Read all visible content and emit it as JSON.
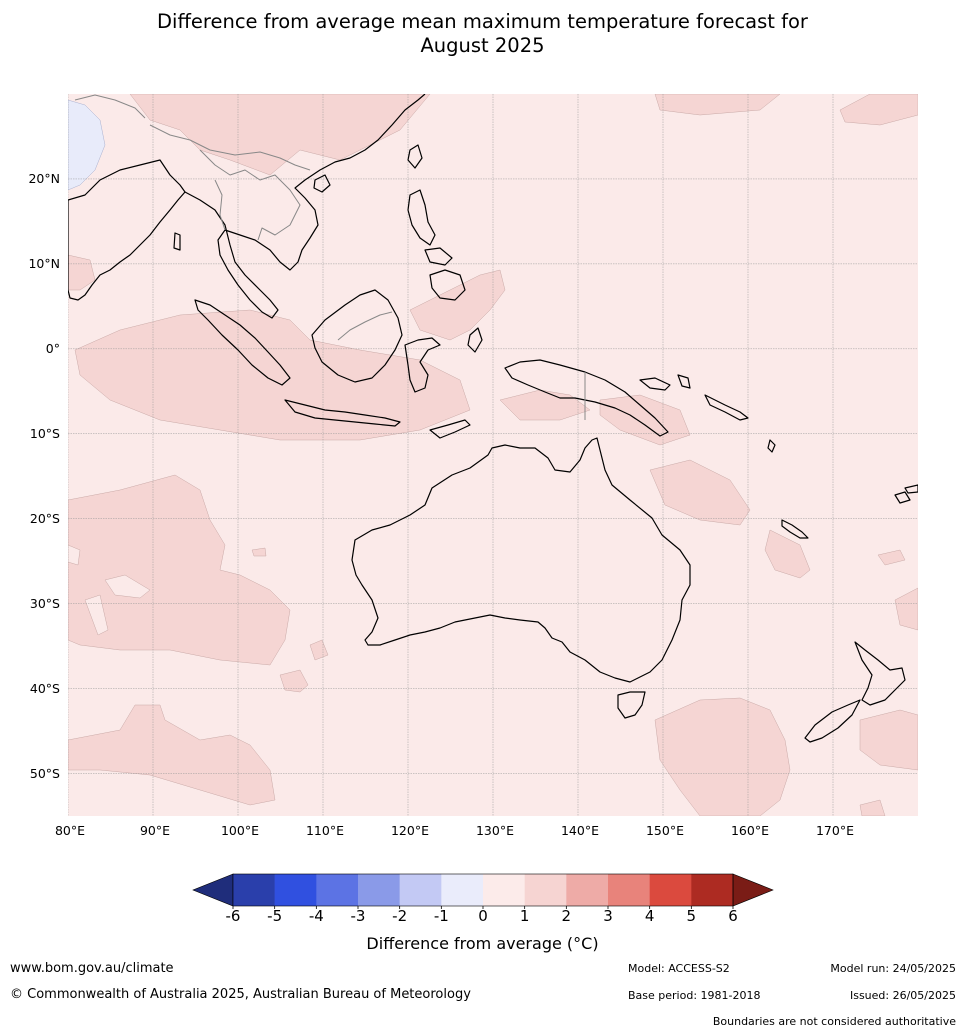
{
  "title": {
    "line1": "Difference from average mean maximum temperature forecast for",
    "line2": "August 2025"
  },
  "map": {
    "extent": {
      "lon_min": 80,
      "lon_max": 180,
      "lat_min": -55,
      "lat_max": 30
    },
    "lat_ticks": [
      {
        "value": 20,
        "label": "20°N"
      },
      {
        "value": 10,
        "label": "10°N"
      },
      {
        "value": 0,
        "label": "0°"
      },
      {
        "value": -10,
        "label": "10°S"
      },
      {
        "value": -20,
        "label": "20°S"
      },
      {
        "value": -30,
        "label": "30°S"
      },
      {
        "value": -40,
        "label": "40°S"
      },
      {
        "value": -50,
        "label": "50°S"
      }
    ],
    "lon_ticks": [
      {
        "value": 80,
        "label": "80°E"
      },
      {
        "value": 90,
        "label": "90°E"
      },
      {
        "value": 100,
        "label": "100°E"
      },
      {
        "value": 110,
        "label": "110°E"
      },
      {
        "value": 120,
        "label": "120°E"
      },
      {
        "value": 130,
        "label": "130°E"
      },
      {
        "value": 140,
        "label": "140°E"
      },
      {
        "value": 150,
        "label": "150°E"
      },
      {
        "value": 160,
        "label": "160°E"
      },
      {
        "value": 170,
        "label": "170°E"
      }
    ],
    "background_class_color": "#fbeae9",
    "warm_patch_color": "#f5d5d3",
    "cool_patch_color": "#e8ebfa",
    "coast_color": "#000000",
    "border_color": "#888888",
    "grid_color": "#999999",
    "gridlines": true
  },
  "colorbar": {
    "ticks": [
      "-6",
      "-5",
      "-4",
      "-3",
      "-2",
      "-1",
      "0",
      "1",
      "2",
      "3",
      "4",
      "5",
      "6"
    ],
    "under_color": "#1f2d7b",
    "over_color": "#7a1c16",
    "colors": [
      "#2a3fab",
      "#3050e0",
      "#5c73e4",
      "#8a9ae8",
      "#c3c9f4",
      "#eaecfb",
      "#fcebea",
      "#f6d4d2",
      "#eeaba7",
      "#e8837b",
      "#db4a3e",
      "#ad2b22"
    ],
    "label": "Difference from average (°C)"
  },
  "footer": {
    "website": "www.bom.gov.au/climate",
    "copyright": "© Commonwealth of Australia 2025, Australian Bureau of Meteorology",
    "model": "Model: ACCESS-S2",
    "base_period": "Base period: 1981-2018",
    "model_run": "Model run: 24/05/2025",
    "issued": "Issued: 26/05/2025",
    "disclaimer": "Boundaries are not considered authoritative"
  }
}
